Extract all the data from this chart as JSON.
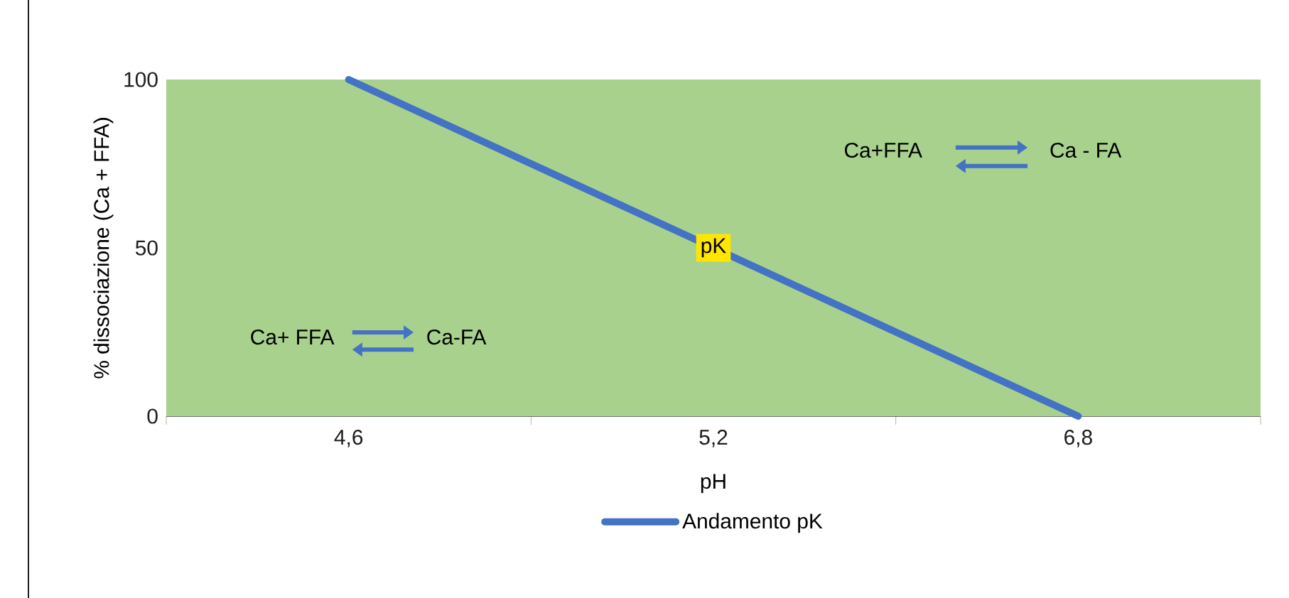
{
  "chart_data": {
    "type": "line",
    "xlabel": "pH",
    "ylabel": "% dissociazione (Ca + FFA)",
    "categories": [
      "4,6",
      "5,2",
      "6,8"
    ],
    "series": [
      {
        "name": "Andamento pK",
        "color": "#4472c4",
        "values": [
          100,
          50,
          0
        ]
      }
    ],
    "ylim": [
      0,
      100
    ],
    "yticks": [
      0,
      50,
      100
    ],
    "grid": false,
    "legend": "bottom",
    "marker": "none",
    "line_style": "solid",
    "bands": [
      {
        "axis": "y",
        "from": 0,
        "to": 100,
        "color": "#a9d18e"
      }
    ],
    "annotations": [
      {
        "text": "pK",
        "x": "5,2",
        "y": 50
      },
      "Ca+FFA",
      "Ca - FA",
      "Ca+ FFA",
      "Ca-FA"
    ]
  }
}
